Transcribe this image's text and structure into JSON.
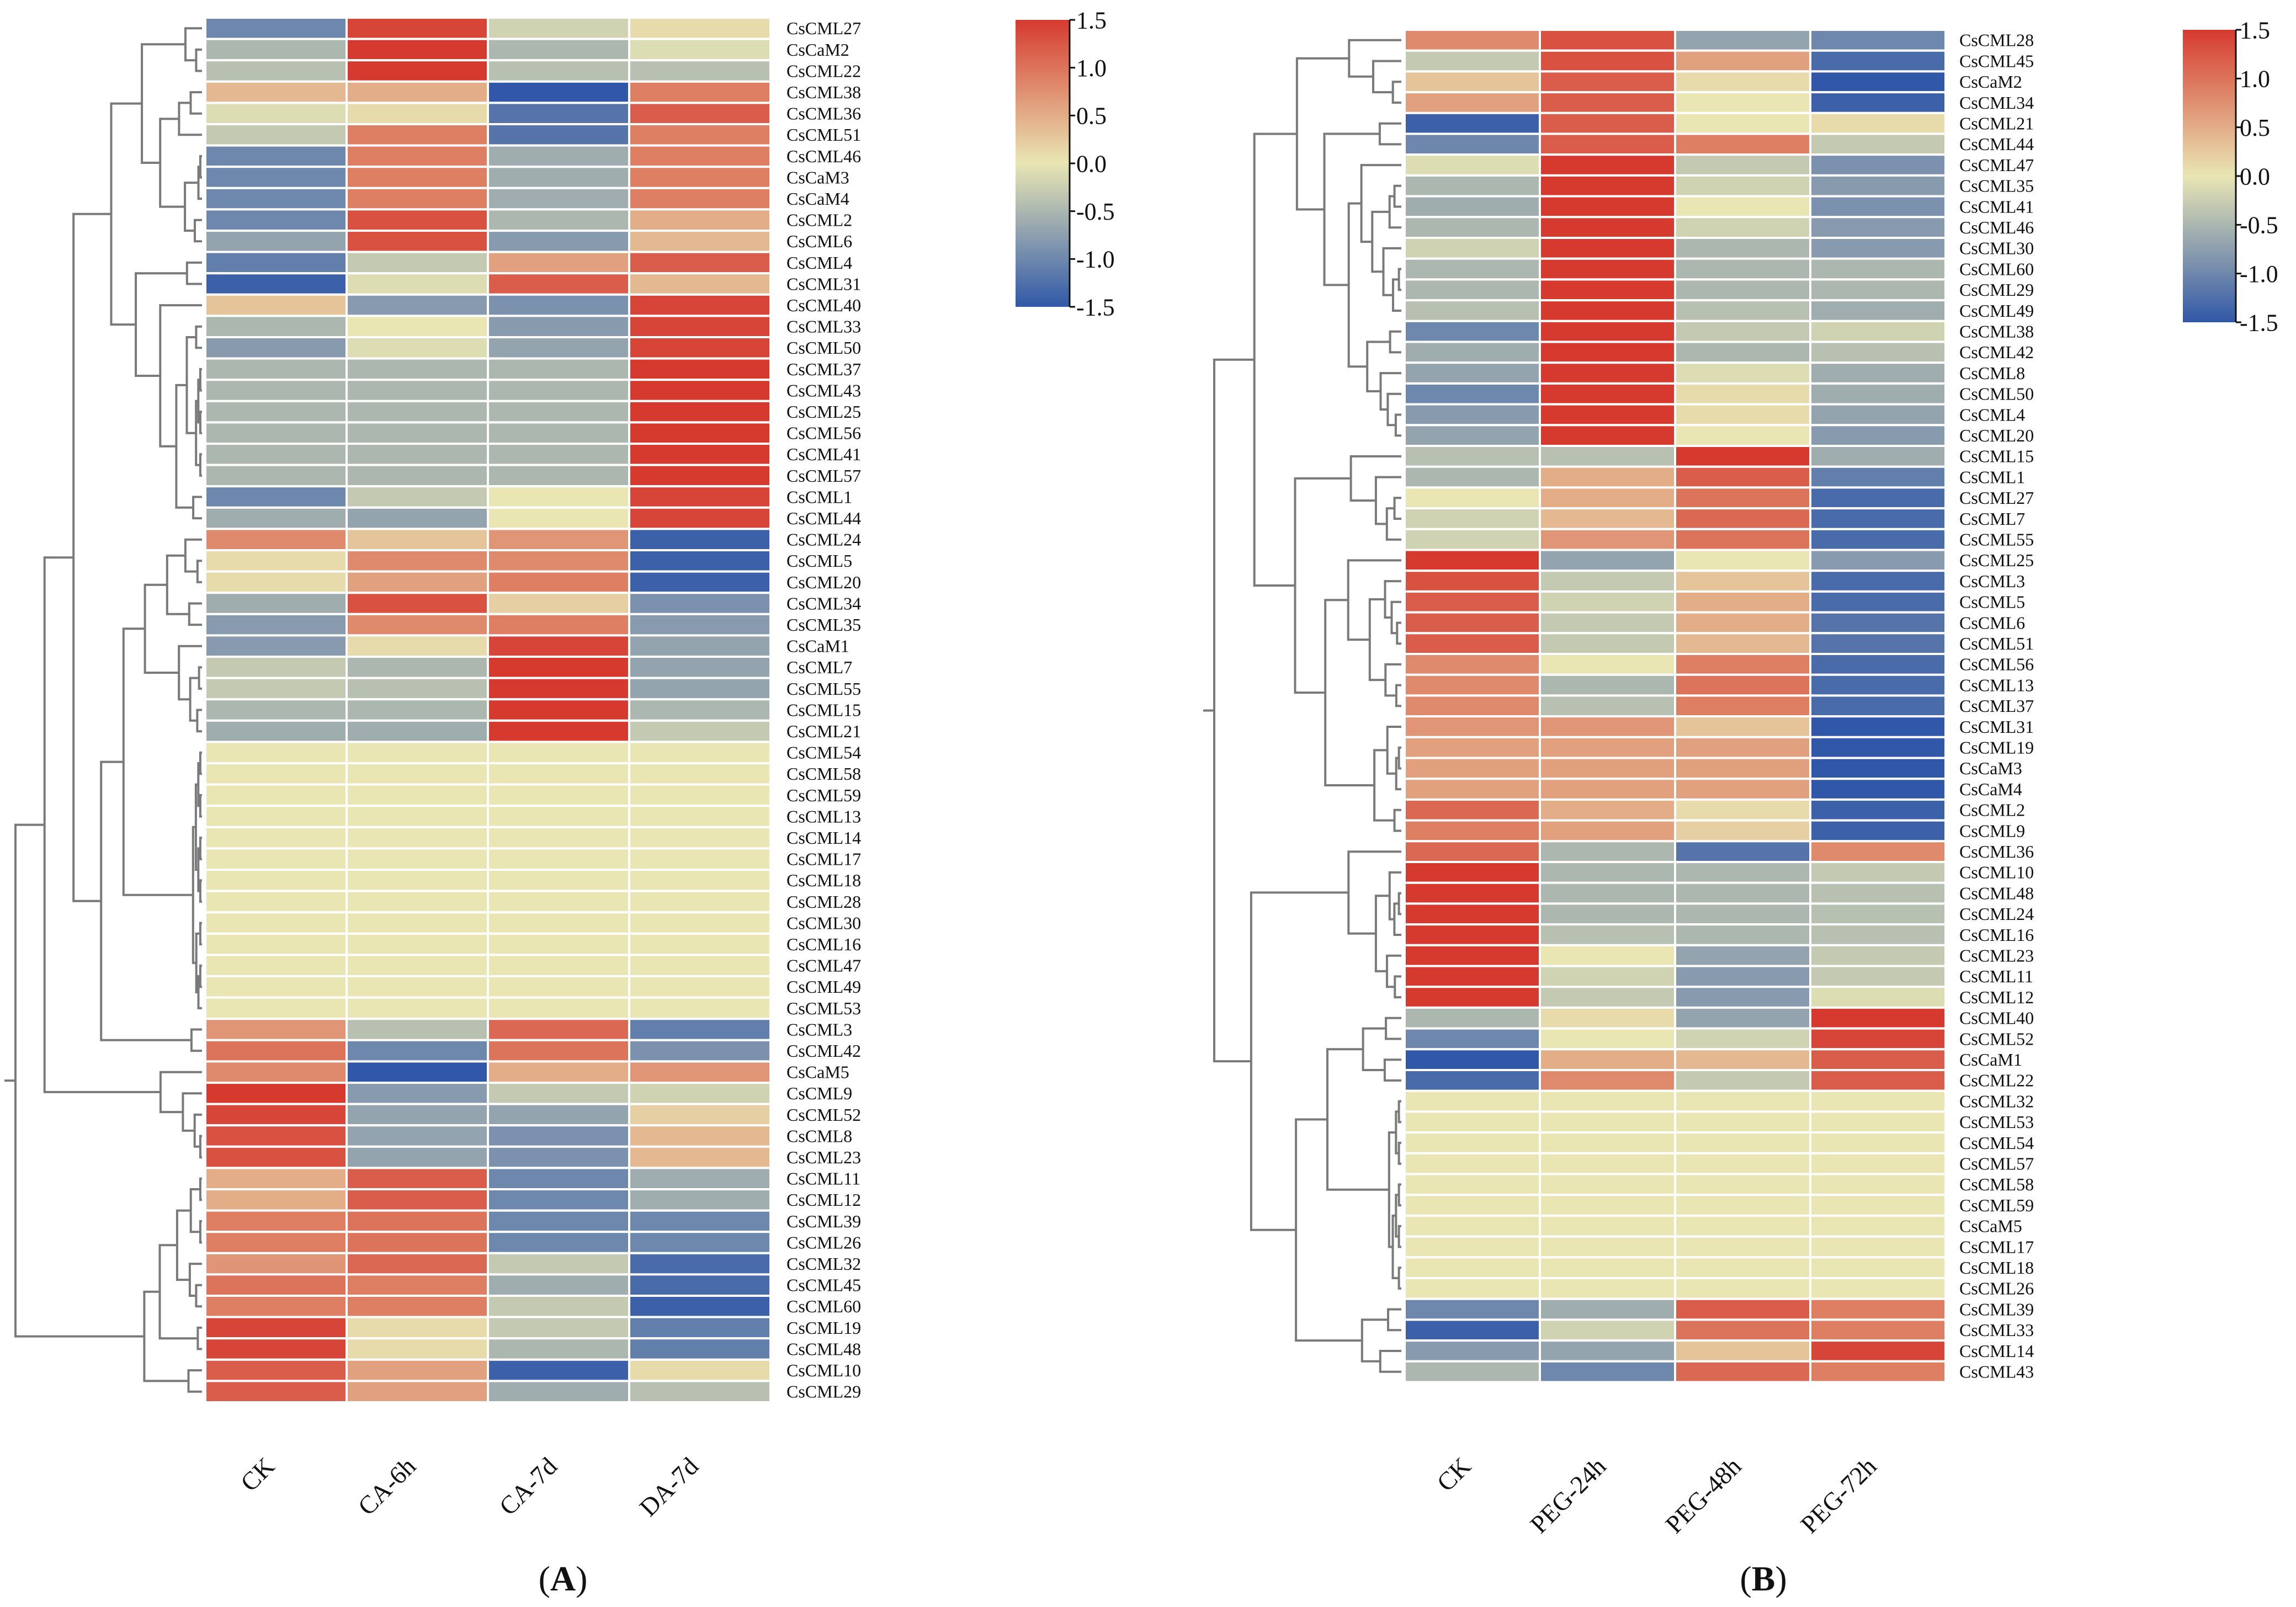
{
  "figure": {
    "panels": [
      {
        "id": "A",
        "label_open": "(",
        "label_letter": "A",
        "label_close": ")"
      },
      {
        "id": "B",
        "label_open": "(",
        "label_letter": "B",
        "label_close": ")"
      }
    ]
  },
  "chart_data": [
    {
      "type": "heatmap",
      "panel": "A",
      "title": "",
      "columns": [
        "CK",
        "CA-6h",
        "CA-7d",
        "DA-7d"
      ],
      "rows": [
        "CsCML27",
        "CsCaM2",
        "CsCML22",
        "CsCML38",
        "CsCML36",
        "CsCML51",
        "CsCML46",
        "CsCaM3",
        "CsCaM4",
        "CsCML2",
        "CsCML6",
        "CsCML4",
        "CsCML31",
        "CsCML40",
        "CsCML33",
        "CsCML50",
        "CsCML37",
        "CsCML43",
        "CsCML25",
        "CsCML56",
        "CsCML41",
        "CsCML57",
        "CsCML1",
        "CsCML44",
        "CsCML24",
        "CsCML5",
        "CsCML20",
        "CsCML34",
        "CsCML35",
        "CsCaM1",
        "CsCML7",
        "CsCML55",
        "CsCML15",
        "CsCML21",
        "CsCML54",
        "CsCML58",
        "CsCML59",
        "CsCML13",
        "CsCML14",
        "CsCML17",
        "CsCML18",
        "CsCML28",
        "CsCML30",
        "CsCML16",
        "CsCML47",
        "CsCML49",
        "CsCML53",
        "CsCML3",
        "CsCML42",
        "CsCaM5",
        "CsCML9",
        "CsCML52",
        "CsCML8",
        "CsCML23",
        "CsCML11",
        "CsCML12",
        "CsCML39",
        "CsCML26",
        "CsCML32",
        "CsCML45",
        "CsCML60",
        "CsCML19",
        "CsCML48",
        "CsCML10",
        "CsCML29"
      ],
      "values": [
        [
          -1.0,
          1.4,
          -0.2,
          0.1
        ],
        [
          -0.5,
          1.5,
          -0.5,
          -0.1
        ],
        [
          -0.4,
          1.5,
          -0.4,
          -0.4
        ],
        [
          0.4,
          0.5,
          -1.5,
          0.9
        ],
        [
          -0.1,
          0.1,
          -1.2,
          1.2
        ],
        [
          -0.3,
          0.9,
          -1.2,
          0.9
        ],
        [
          -1.0,
          0.9,
          -0.6,
          0.9
        ],
        [
          -1.0,
          0.9,
          -0.6,
          0.9
        ],
        [
          -1.0,
          0.9,
          -0.6,
          0.9
        ],
        [
          -1.0,
          1.3,
          -0.5,
          0.5
        ],
        [
          -0.7,
          1.3,
          -0.8,
          0.4
        ],
        [
          -1.1,
          -0.3,
          0.6,
          1.2
        ],
        [
          -1.4,
          -0.1,
          1.2,
          0.4
        ],
        [
          0.3,
          -0.8,
          -0.9,
          1.4
        ],
        [
          -0.5,
          0.0,
          -0.8,
          1.4
        ],
        [
          -0.8,
          -0.1,
          -0.7,
          1.4
        ],
        [
          -0.5,
          -0.5,
          -0.5,
          1.5
        ],
        [
          -0.5,
          -0.5,
          -0.5,
          1.5
        ],
        [
          -0.5,
          -0.5,
          -0.5,
          1.5
        ],
        [
          -0.5,
          -0.5,
          -0.5,
          1.5
        ],
        [
          -0.5,
          -0.5,
          -0.5,
          1.5
        ],
        [
          -0.5,
          -0.5,
          -0.5,
          1.5
        ],
        [
          -1.0,
          -0.3,
          0.0,
          1.4
        ],
        [
          -0.6,
          -0.7,
          0.0,
          1.4
        ],
        [
          0.8,
          0.3,
          0.7,
          -1.4
        ],
        [
          0.1,
          0.8,
          0.8,
          -1.4
        ],
        [
          0.1,
          0.6,
          0.9,
          -1.4
        ],
        [
          -0.6,
          1.3,
          0.2,
          -0.9
        ],
        [
          -0.8,
          0.8,
          0.9,
          -0.8
        ],
        [
          -0.8,
          0.1,
          1.4,
          -0.7
        ],
        [
          -0.3,
          -0.5,
          1.5,
          -0.7
        ],
        [
          -0.3,
          -0.4,
          1.5,
          -0.7
        ],
        [
          -0.5,
          -0.5,
          1.5,
          -0.5
        ],
        [
          -0.6,
          -0.6,
          1.5,
          -0.3
        ],
        [
          0.0,
          0.0,
          0.0,
          0.0
        ],
        [
          0.0,
          0.0,
          0.0,
          0.0
        ],
        [
          0.0,
          0.0,
          0.0,
          0.0
        ],
        [
          0.0,
          0.0,
          0.0,
          0.0
        ],
        [
          0.0,
          0.0,
          0.0,
          0.0
        ],
        [
          0.0,
          0.0,
          0.0,
          0.0
        ],
        [
          0.0,
          0.0,
          0.0,
          0.0
        ],
        [
          0.0,
          0.0,
          0.0,
          0.0
        ],
        [
          0.0,
          0.0,
          0.0,
          0.0
        ],
        [
          0.0,
          0.0,
          0.0,
          0.0
        ],
        [
          0.0,
          0.0,
          0.0,
          0.0
        ],
        [
          0.0,
          0.0,
          0.0,
          0.0
        ],
        [
          0.0,
          0.0,
          0.0,
          0.0
        ],
        [
          0.7,
          -0.4,
          1.1,
          -1.1
        ],
        [
          1.0,
          -1.0,
          1.0,
          -0.9
        ],
        [
          0.8,
          -1.5,
          0.5,
          0.7
        ],
        [
          1.5,
          -0.8,
          -0.3,
          -0.2
        ],
        [
          1.4,
          -0.7,
          -0.7,
          0.2
        ],
        [
          1.3,
          -0.7,
          -0.9,
          0.4
        ],
        [
          1.3,
          -0.7,
          -0.9,
          0.4
        ],
        [
          0.5,
          1.2,
          -1.0,
          -0.6
        ],
        [
          0.5,
          1.2,
          -1.0,
          -0.6
        ],
        [
          0.9,
          1.0,
          -1.0,
          -1.0
        ],
        [
          0.9,
          1.0,
          -1.0,
          -1.0
        ],
        [
          0.7,
          1.1,
          -0.3,
          -1.3
        ],
        [
          1.0,
          0.9,
          -0.6,
          -1.3
        ],
        [
          0.9,
          0.9,
          -0.3,
          -1.4
        ],
        [
          1.4,
          0.1,
          -0.3,
          -1.1
        ],
        [
          1.4,
          0.1,
          -0.5,
          -1.1
        ],
        [
          1.2,
          0.6,
          -1.4,
          0.1
        ],
        [
          1.2,
          0.6,
          -0.6,
          -0.4
        ]
      ],
      "colorbar": {
        "min": -1.5,
        "max": 1.5,
        "ticks": [
          1.5,
          1.0,
          0.5,
          0.0,
          -0.5,
          -1.0,
          -1.5
        ],
        "tick_labels": [
          "1.5",
          "1.0",
          "0.5",
          "0.0",
          "-0.5",
          "-1.0",
          "-1.5"
        ],
        "colors": [
          "#3158a8",
          "#e9e6b4",
          "#d63a2f"
        ]
      }
    },
    {
      "type": "heatmap",
      "panel": "B",
      "title": "",
      "columns": [
        "CK",
        "PEG-24h",
        "PEG-48h",
        "PEG-72h"
      ],
      "rows": [
        "CsCML28",
        "CsCML45",
        "CsCaM2",
        "CsCML34",
        "CsCML21",
        "CsCML44",
        "CsCML47",
        "CsCML35",
        "CsCML41",
        "CsCML46",
        "CsCML30",
        "CsCML60",
        "CsCML29",
        "CsCML49",
        "CsCML38",
        "CsCML42",
        "CsCML8",
        "CsCML50",
        "CsCML4",
        "CsCML20",
        "CsCML15",
        "CsCML1",
        "CsCML27",
        "CsCML7",
        "CsCML55",
        "CsCML25",
        "CsCML3",
        "CsCML5",
        "CsCML6",
        "CsCML51",
        "CsCML56",
        "CsCML13",
        "CsCML37",
        "CsCML31",
        "CsCML19",
        "CsCaM3",
        "CsCaM4",
        "CsCML2",
        "CsCML9",
        "CsCML36",
        "CsCML10",
        "CsCML48",
        "CsCML24",
        "CsCML16",
        "CsCML23",
        "CsCML11",
        "CsCML12",
        "CsCML40",
        "CsCML52",
        "CsCaM1",
        "CsCML22",
        "CsCML32",
        "CsCML53",
        "CsCML54",
        "CsCML57",
        "CsCML58",
        "CsCML59",
        "CsCaM5",
        "CsCML17",
        "CsCML18",
        "CsCML26",
        "CsCML39",
        "CsCML33",
        "CsCML14",
        "CsCML43"
      ],
      "values": [
        [
          0.8,
          1.3,
          -0.7,
          -1.0
        ],
        [
          -0.3,
          1.3,
          0.6,
          -1.3
        ],
        [
          0.3,
          1.2,
          0.1,
          -1.5
        ],
        [
          0.6,
          1.2,
          0.0,
          -1.4
        ],
        [
          -1.4,
          1.2,
          0.0,
          0.1
        ],
        [
          -1.0,
          1.2,
          0.9,
          -0.3
        ],
        [
          -0.1,
          1.5,
          -0.3,
          -0.9
        ],
        [
          -0.5,
          1.5,
          -0.2,
          -0.8
        ],
        [
          -0.6,
          1.5,
          0.0,
          -0.9
        ],
        [
          -0.5,
          1.5,
          -0.2,
          -0.8
        ],
        [
          -0.2,
          1.5,
          -0.5,
          -0.8
        ],
        [
          -0.5,
          1.5,
          -0.5,
          -0.5
        ],
        [
          -0.5,
          1.5,
          -0.5,
          -0.5
        ],
        [
          -0.4,
          1.5,
          -0.4,
          -0.6
        ],
        [
          -1.0,
          1.5,
          -0.3,
          -0.2
        ],
        [
          -0.6,
          1.5,
          -0.5,
          -0.4
        ],
        [
          -0.7,
          1.5,
          -0.1,
          -0.6
        ],
        [
          -1.0,
          1.5,
          0.1,
          -0.6
        ],
        [
          -0.8,
          1.5,
          0.1,
          -0.7
        ],
        [
          -0.7,
          1.5,
          0.0,
          -0.8
        ],
        [
          -0.4,
          -0.4,
          1.5,
          -0.6
        ],
        [
          -0.5,
          0.5,
          1.2,
          -1.1
        ],
        [
          0.0,
          0.5,
          1.0,
          -1.3
        ],
        [
          -0.2,
          0.4,
          1.1,
          -1.3
        ],
        [
          -0.2,
          0.7,
          1.0,
          -1.3
        ],
        [
          1.5,
          -0.7,
          0.0,
          -0.8
        ],
        [
          1.3,
          -0.3,
          0.3,
          -1.3
        ],
        [
          1.2,
          -0.2,
          0.5,
          -1.3
        ],
        [
          1.2,
          -0.3,
          0.5,
          -1.2
        ],
        [
          1.2,
          -0.3,
          0.4,
          -1.2
        ],
        [
          0.8,
          0.0,
          0.9,
          -1.3
        ],
        [
          0.8,
          -0.5,
          1.0,
          -1.3
        ],
        [
          0.8,
          -0.4,
          0.9,
          -1.3
        ],
        [
          0.7,
          0.7,
          0.3,
          -1.5
        ],
        [
          0.6,
          0.6,
          0.6,
          -1.5
        ],
        [
          0.6,
          0.6,
          0.6,
          -1.5
        ],
        [
          0.6,
          0.6,
          0.6,
          -1.5
        ],
        [
          1.1,
          0.5,
          0.1,
          -1.4
        ],
        [
          0.9,
          0.6,
          0.2,
          -1.4
        ],
        [
          1.1,
          -0.5,
          -1.2,
          0.8
        ],
        [
          1.5,
          -0.5,
          -0.5,
          -0.3
        ],
        [
          1.5,
          -0.5,
          -0.5,
          -0.4
        ],
        [
          1.5,
          -0.5,
          -0.5,
          -0.4
        ],
        [
          1.5,
          -0.4,
          -0.5,
          -0.4
        ],
        [
          1.5,
          0.0,
          -0.7,
          -0.3
        ],
        [
          1.5,
          -0.2,
          -0.8,
          -0.3
        ],
        [
          1.5,
          -0.3,
          -0.8,
          -0.1
        ],
        [
          -0.5,
          0.1,
          -0.7,
          1.5
        ],
        [
          -1.0,
          0.0,
          -0.2,
          1.4
        ],
        [
          -1.5,
          0.5,
          0.4,
          1.2
        ],
        [
          -1.3,
          0.8,
          -0.3,
          1.2
        ],
        [
          0.0,
          0.0,
          0.0,
          0.0
        ],
        [
          0.0,
          0.0,
          0.0,
          0.0
        ],
        [
          0.0,
          0.0,
          0.0,
          0.0
        ],
        [
          0.0,
          0.0,
          0.0,
          0.0
        ],
        [
          0.0,
          0.0,
          0.0,
          0.0
        ],
        [
          0.0,
          0.0,
          0.0,
          0.0
        ],
        [
          0.0,
          0.0,
          0.0,
          0.0
        ],
        [
          0.0,
          0.0,
          0.0,
          0.0
        ],
        [
          0.0,
          0.0,
          0.0,
          0.0
        ],
        [
          0.0,
          0.0,
          0.0,
          0.0
        ],
        [
          -1.0,
          -0.6,
          1.2,
          0.9
        ],
        [
          -1.4,
          -0.2,
          1.0,
          0.9
        ],
        [
          -0.8,
          -0.7,
          0.3,
          1.4
        ],
        [
          -0.5,
          -1.0,
          1.1,
          0.9
        ]
      ],
      "colorbar": {
        "min": -1.5,
        "max": 1.5,
        "ticks": [
          1.5,
          1.0,
          0.5,
          0.0,
          -0.5,
          -1.0,
          -1.5
        ],
        "tick_labels": [
          "1.5",
          "1.0",
          "0.5",
          "0.0",
          "-0.5",
          "-1.0",
          "-1.5"
        ],
        "colors": [
          "#3158a8",
          "#e9e6b4",
          "#d63a2f"
        ]
      }
    }
  ]
}
